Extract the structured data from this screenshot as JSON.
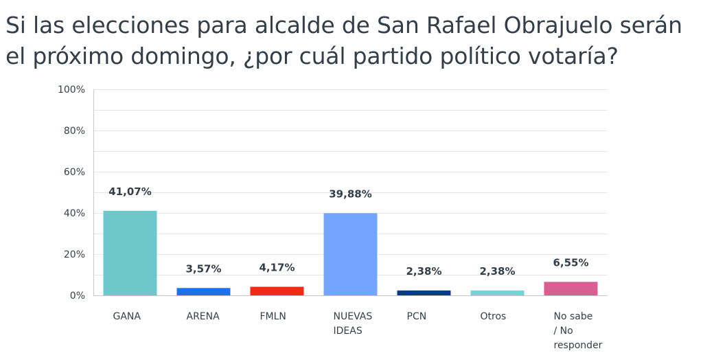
{
  "chart_data": {
    "type": "bar",
    "title": "Si las elecciones para alcalde de San Rafael Obrajuelo serán el próximo domingo, ¿por cuál partido político votaría?",
    "categories": [
      "GANA",
      "ARENA",
      "FMLN",
      "NUEVAS IDEAS",
      "PCN",
      "Otros",
      "No sabe / No responder"
    ],
    "category_lines": [
      [
        "GANA"
      ],
      [
        "ARENA"
      ],
      [
        "FMLN"
      ],
      [
        "NUEVAS",
        "IDEAS"
      ],
      [
        "PCN"
      ],
      [
        "Otros"
      ],
      [
        "No sabe",
        "/ No",
        "responder"
      ]
    ],
    "values": [
      41.07,
      3.57,
      4.17,
      39.88,
      2.38,
      2.38,
      6.55
    ],
    "data_labels": [
      "41,07%",
      "3,57%",
      "4,17%",
      "39,88%",
      "2,38%",
      "2,38%",
      "6,55%"
    ],
    "colors": [
      "#6cc8cb",
      "#1a73e8",
      "#f02a16",
      "#73a5ff",
      "#0a3a8c",
      "#75d4d6",
      "#d95f92"
    ],
    "y_ticks": [
      0,
      20,
      40,
      60,
      80,
      100
    ],
    "y_tick_labels": [
      "0%",
      "20%",
      "40%",
      "60%",
      "80%",
      "100%"
    ],
    "ylim": [
      0,
      100
    ],
    "xlabel": "",
    "ylabel": "",
    "grid": true,
    "grid_color": "#e6e6e6",
    "axis_color": "#c7c7c7"
  }
}
